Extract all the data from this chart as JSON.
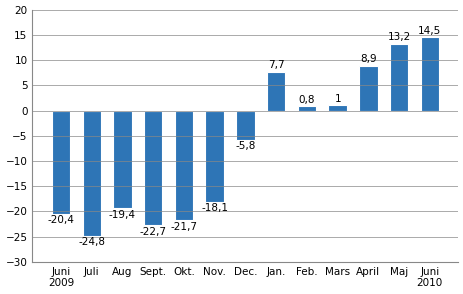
{
  "categories": [
    "Juni\n2009",
    "Juli",
    "Aug",
    "Sept.",
    "Okt.",
    "Nov.",
    "Dec.",
    "Jan.",
    "Feb.",
    "Mars",
    "April",
    "Maj",
    "Juni\n2010"
  ],
  "values": [
    -20.4,
    -24.8,
    -19.4,
    -22.7,
    -21.7,
    -18.1,
    -5.8,
    7.7,
    0.8,
    1.0,
    8.9,
    13.2,
    14.5
  ],
  "bar_color": "#2E75B6",
  "ylim": [
    -30,
    20
  ],
  "yticks": [
    -30,
    -25,
    -20,
    -15,
    -10,
    -5,
    0,
    5,
    10,
    15,
    20
  ],
  "label_fontsize": 7.5,
  "tick_fontsize": 7.5,
  "background_color": "#ffffff",
  "grid_color": "#888888",
  "value_labels": [
    "-20,4",
    "-24,8",
    "-19,4",
    "-22,7",
    "-21,7",
    "-18,1",
    "-5,8",
    "7,7",
    "0,8",
    "1",
    "8,9",
    "13,2",
    "14,5"
  ],
  "bar_width": 0.6
}
